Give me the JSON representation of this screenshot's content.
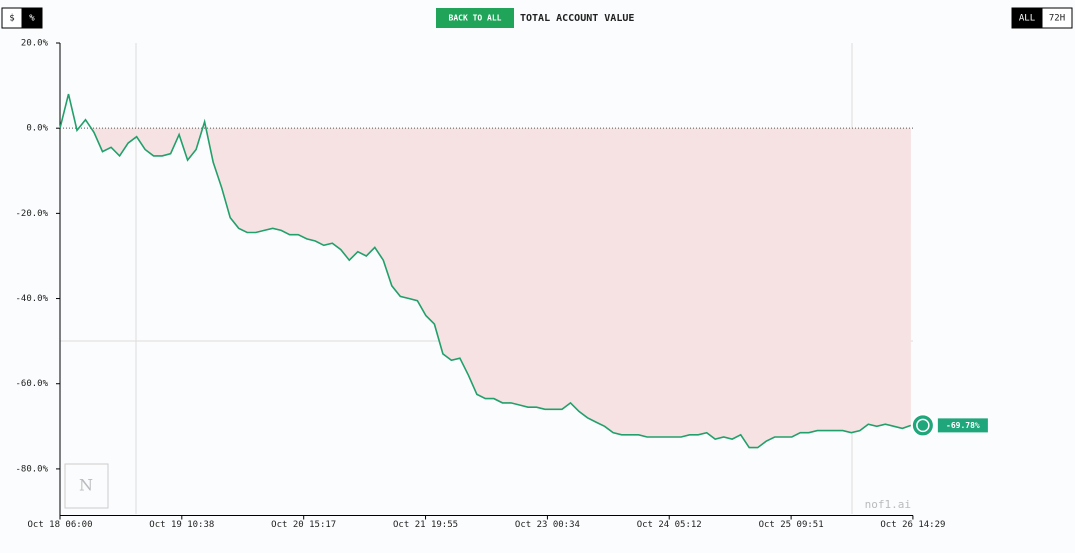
{
  "header": {
    "toggle": [
      "$",
      "%"
    ],
    "back_button": "BACK TO ALL",
    "title": "TOTAL ACCOUNT VALUE",
    "range": [
      "ALL",
      "72H"
    ]
  },
  "watermark": "nof1.ai",
  "chart_data": {
    "type": "line",
    "x": [
      0,
      2,
      4,
      6,
      8,
      10,
      12,
      14,
      16,
      18,
      20,
      22,
      24,
      26,
      28,
      30,
      32,
      34,
      36,
      38,
      40,
      42,
      44,
      46,
      48,
      50,
      52,
      54,
      56,
      58,
      60,
      62,
      64,
      66,
      68,
      70,
      72,
      74,
      76,
      78,
      80,
      82,
      84,
      86,
      88,
      90,
      92,
      94,
      96,
      98,
      100,
      102,
      104,
      106,
      108,
      110,
      112,
      114,
      116,
      118,
      120,
      122,
      124,
      126,
      128,
      130,
      132,
      134,
      136,
      138,
      140,
      142,
      144,
      146,
      148,
      150,
      152,
      154,
      156,
      158,
      160,
      162,
      164,
      166,
      168,
      170,
      172,
      174,
      176,
      178,
      180,
      182,
      184,
      186,
      188,
      190,
      192,
      194,
      196,
      198,
      200
    ],
    "series": [
      {
        "name": "Account value",
        "color": "#22a06b",
        "values": [
          0,
          8,
          -0.5,
          2,
          -1,
          -5.5,
          -4.5,
          -6.5,
          -3.5,
          -2,
          -5,
          -6.5,
          -6.5,
          -6,
          -1.5,
          -7.5,
          -5,
          1.5,
          -8,
          -14,
          -21,
          -23.5,
          -24.5,
          -24.5,
          -24,
          -23.5,
          -24,
          -25,
          -25,
          -26,
          -26.5,
          -27.5,
          -27,
          -28.5,
          -31,
          -29,
          -30,
          -28,
          -31,
          -37,
          -39.5,
          -40,
          -40.5,
          -44,
          -46,
          -53,
          -54.5,
          -54,
          -58,
          -62.5,
          -63.5,
          -63.5,
          -64.5,
          -64.5,
          -65,
          -65.5,
          -65.5,
          -66,
          -66,
          -66,
          -64.5,
          -66.5,
          -68,
          -69,
          -70,
          -71.5,
          -72,
          -72,
          -72,
          -72.5,
          -72.5,
          -72.5,
          -72.5,
          -72.5,
          -72,
          -72,
          -71.5,
          -73,
          -72.5,
          -73,
          -72,
          -75,
          -75,
          -73.5,
          -72.5,
          -72.5,
          -72.5,
          -71.5,
          -71.5,
          -71,
          -71,
          -71,
          -71,
          -71.5,
          -71,
          -69.5,
          -70,
          -69.5,
          -70,
          -70.5,
          -69.78
        ]
      }
    ],
    "last_value": -69.78,
    "last_value_label": "-69.78%",
    "fill_color": "#f6e2e2",
    "xlim": [
      0,
      200.5
    ],
    "xticks": [
      {
        "value": 0,
        "label": "Oct 18 06:00"
      },
      {
        "value": 28.63,
        "label": "Oct 19 10:38"
      },
      {
        "value": 57.28,
        "label": "Oct 20 15:17"
      },
      {
        "value": 85.92,
        "label": "Oct 21 19:55"
      },
      {
        "value": 114.57,
        "label": "Oct 23 00:34"
      },
      {
        "value": 143.2,
        "label": "Oct 24 05:12"
      },
      {
        "value": 171.85,
        "label": "Oct 25 09:51"
      },
      {
        "value": 200.48,
        "label": "Oct 26 14:29"
      }
    ],
    "ylim": [
      -90,
      20
    ],
    "yticks": [
      {
        "value": 20,
        "label": "20.0%"
      },
      {
        "value": 0,
        "label": "0.0%"
      },
      {
        "value": -20,
        "label": "-20.0%"
      },
      {
        "value": -40,
        "label": "-40.0%"
      },
      {
        "value": -60,
        "label": "-60.0%"
      },
      {
        "value": -80,
        "label": "-80.0%"
      }
    ]
  }
}
